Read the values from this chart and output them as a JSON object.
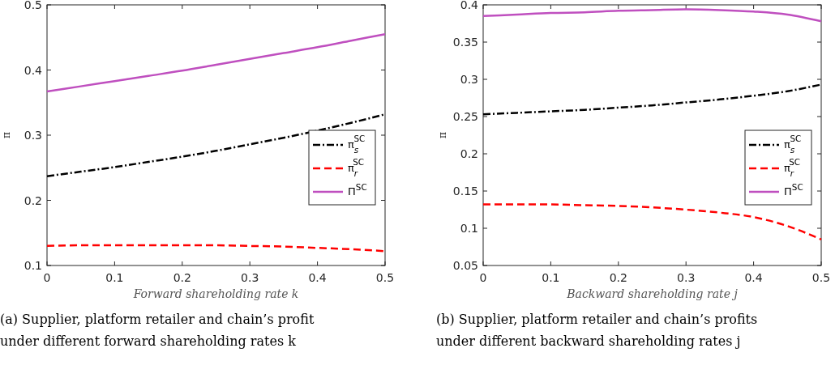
{
  "chart_data": [
    {
      "type": "line",
      "ylabel": "π",
      "xlabel": "Forward shareholding rate k",
      "x": [
        0,
        0.05,
        0.1,
        0.15,
        0.2,
        0.25,
        0.3,
        0.35,
        0.4,
        0.45,
        0.5
      ],
      "xlim": [
        0,
        0.5
      ],
      "xticks": [
        0,
        0.1,
        0.2,
        0.3,
        0.4,
        0.5
      ],
      "ylim": [
        0.1,
        0.5
      ],
      "yticks": [
        0.1,
        0.2,
        0.3,
        0.4,
        0.5
      ],
      "legend": "right",
      "grid": false,
      "series": [
        {
          "name": "π$_{s}$$^{SC}$",
          "color": "#000000",
          "line_style": "dashdot",
          "values": [
            0.237,
            0.244,
            0.251,
            0.259,
            0.267,
            0.276,
            0.286,
            0.296,
            0.307,
            0.319,
            0.332
          ]
        },
        {
          "name": "π$_{r}$$^{SC}$",
          "color": "#ff0000",
          "line_style": "dashed",
          "values": [
            0.13,
            0.131,
            0.131,
            0.131,
            0.131,
            0.131,
            0.13,
            0.129,
            0.127,
            0.125,
            0.122
          ]
        },
        {
          "name": "Π$^{SC}$",
          "color": "#bf4fbf",
          "line_style": "solid",
          "values": [
            0.367,
            0.375,
            0.383,
            0.391,
            0.399,
            0.408,
            0.417,
            0.426,
            0.435,
            0.445,
            0.455
          ]
        }
      ],
      "annotations": [
        "(a) Supplier, platform retailer and chain’s profit under different forward shareholding rates k"
      ]
    },
    {
      "type": "line",
      "ylabel": "π",
      "xlabel": "Backward shareholding rate j",
      "x": [
        0,
        0.05,
        0.1,
        0.15,
        0.2,
        0.25,
        0.3,
        0.35,
        0.4,
        0.45,
        0.5
      ],
      "xlim": [
        0,
        0.5
      ],
      "xticks": [
        0,
        0.1,
        0.2,
        0.3,
        0.4,
        0.5
      ],
      "ylim": [
        0.05,
        0.4
      ],
      "yticks": [
        0.05,
        0.1,
        0.15,
        0.2,
        0.25,
        0.3,
        0.35,
        0.4
      ],
      "legend": "right",
      "grid": false,
      "series": [
        {
          "name": "π$_{s}$$^{SC}$",
          "color": "#000000",
          "line_style": "dashdot",
          "values": [
            0.253,
            0.255,
            0.257,
            0.259,
            0.262,
            0.265,
            0.269,
            0.273,
            0.278,
            0.284,
            0.293
          ]
        },
        {
          "name": "π$_{r}$$^{SC}$",
          "color": "#ff0000",
          "line_style": "dashed",
          "values": [
            0.132,
            0.132,
            0.132,
            0.131,
            0.13,
            0.128,
            0.125,
            0.121,
            0.115,
            0.103,
            0.085
          ]
        },
        {
          "name": "Π$^{SC}$",
          "color": "#bf4fbf",
          "line_style": "solid",
          "values": [
            0.385,
            0.387,
            0.389,
            0.39,
            0.392,
            0.393,
            0.394,
            0.393,
            0.391,
            0.387,
            0.378
          ]
        }
      ],
      "annotations": [
        "(b) Supplier, platform retailer and chain’s profits under different backward shareholding rates j"
      ]
    }
  ]
}
